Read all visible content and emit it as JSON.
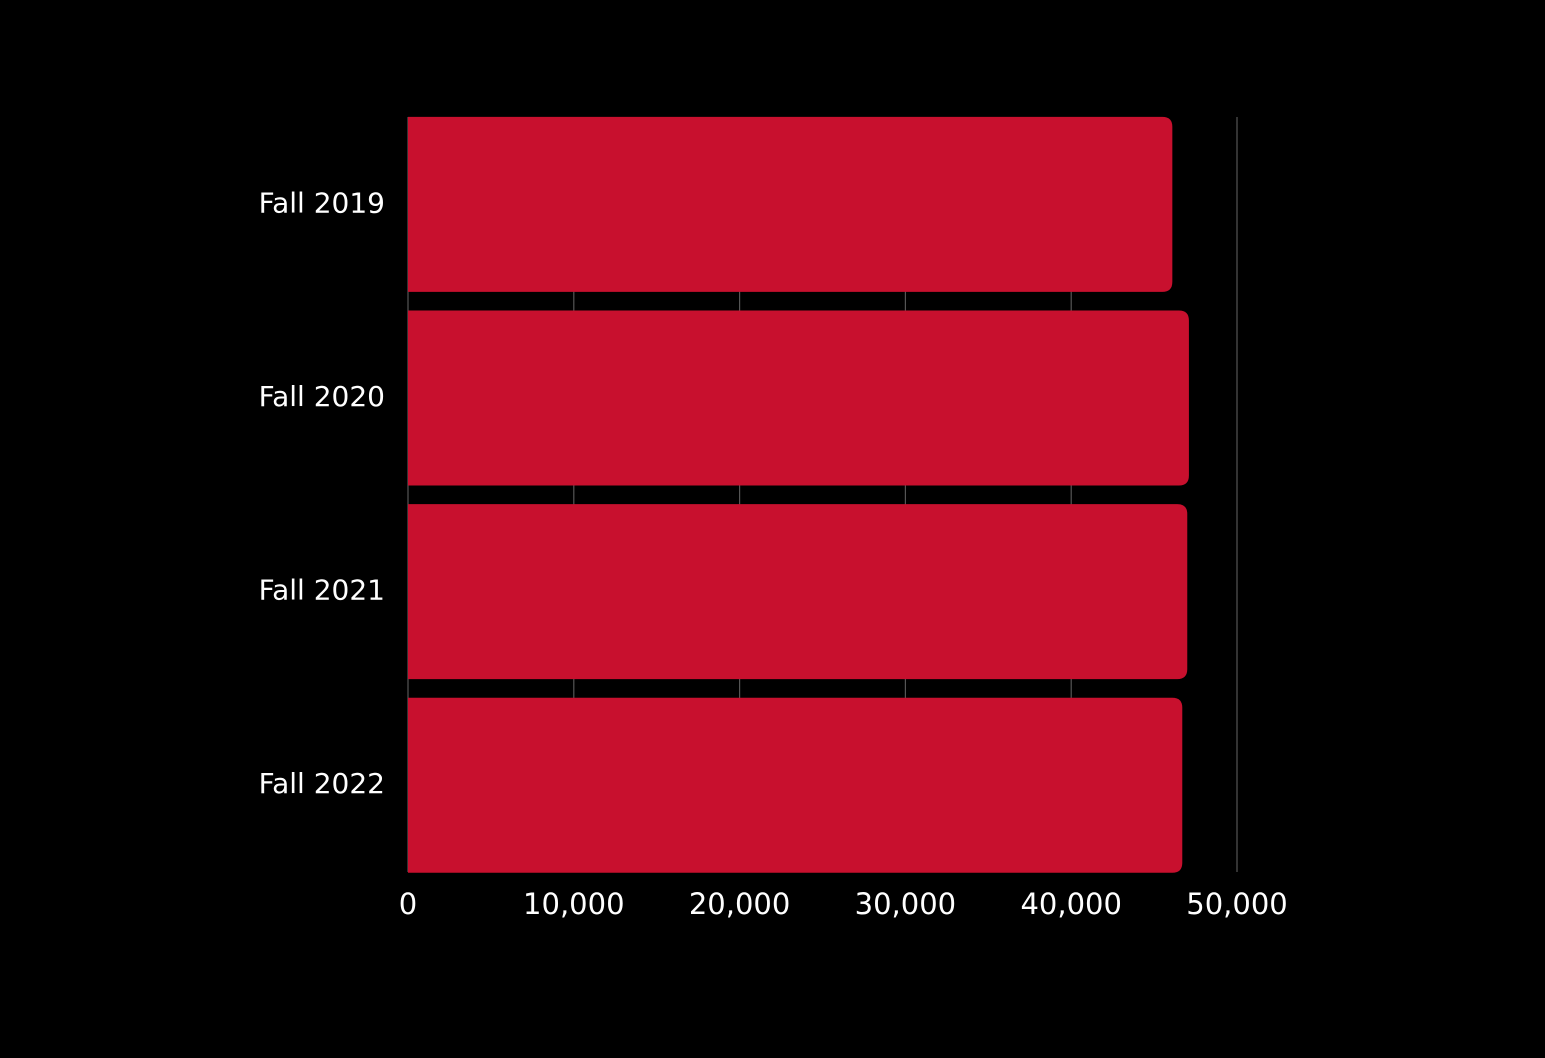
{
  "chart_data": {
    "type": "bar",
    "orientation": "horizontal",
    "categories": [
      "Fall 2019",
      "Fall 2020",
      "Fall 2021",
      "Fall 2022"
    ],
    "values": [
      46100,
      47100,
      47000,
      46700
    ],
    "color": "#c8102e",
    "xlim": [
      0,
      50000
    ],
    "xticks": [
      0,
      {
        "value": 10000,
        "label": "10,000"
      },
      {
        "value": 20000,
        "label": "20,000"
      },
      {
        "value": 30000,
        "label": "30,000"
      },
      {
        "value": 40000,
        "label": "40,000"
      },
      {
        "value": 50000,
        "label": "50,000"
      }
    ],
    "grid": true
  }
}
